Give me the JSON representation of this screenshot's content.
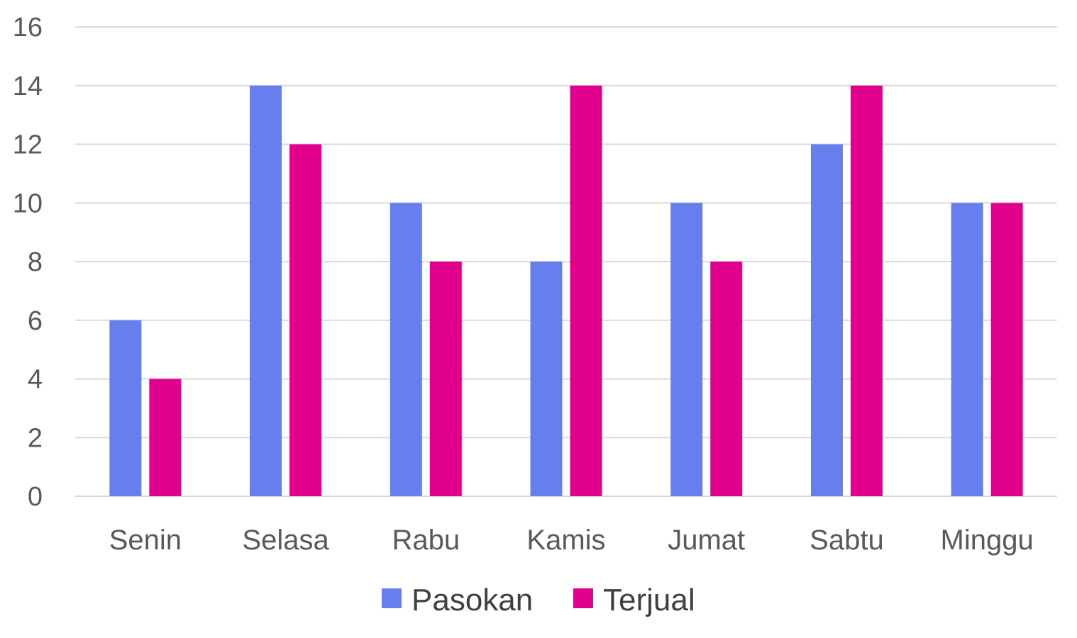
{
  "chart_data": {
    "type": "bar",
    "title": "",
    "xlabel": "",
    "ylabel": "",
    "categories": [
      "Senin",
      "Selasa",
      "Rabu",
      "Kamis",
      "Jumat",
      "Sabtu",
      "Minggu"
    ],
    "series": [
      {
        "name": "Pasokan",
        "color": "#667eee",
        "values": [
          6,
          14,
          10,
          8,
          10,
          12,
          10
        ]
      },
      {
        "name": "Terjual",
        "color": "#e1008c",
        "values": [
          4,
          12,
          8,
          14,
          8,
          14,
          10
        ]
      }
    ],
    "ylim": [
      0,
      16
    ],
    "yticks": [
      0,
      2,
      4,
      6,
      8,
      10,
      12,
      14,
      16
    ],
    "grid": true,
    "legend_position": "bottom"
  }
}
